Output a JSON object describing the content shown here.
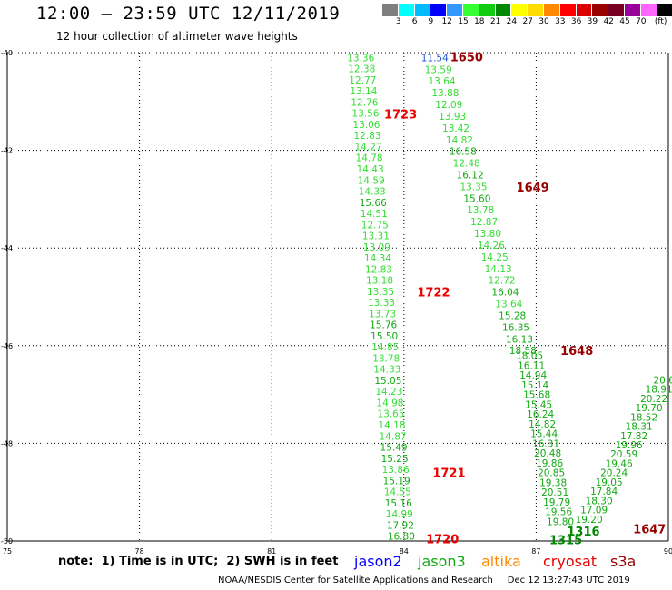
{
  "header": {
    "title": "12:00 – 23:59 UTC 12/11/2019",
    "subtitle": "12 hour collection of altimeter wave heights"
  },
  "color_scale": {
    "colors": [
      "#7f7f7f",
      "#00ffff",
      "#00bbff",
      "#0000ff",
      "#3399ff",
      "#33ff33",
      "#11cc11",
      "#008800",
      "#ffff00",
      "#ffdd00",
      "#ff8800",
      "#ff0000",
      "#dd0000",
      "#990000",
      "#770022",
      "#990099",
      "#ff66ff",
      "#000000"
    ],
    "labels": [
      "3",
      "6",
      "9",
      "12",
      "15",
      "18",
      "21",
      "24",
      "27",
      "30",
      "33",
      "36",
      "39",
      "42",
      "45",
      "70",
      "(ft)"
    ]
  },
  "map": {
    "x_ticks": [
      "75",
      "78",
      "81",
      "84",
      "87",
      "90"
    ],
    "y_ticks": [
      "-40",
      "-42",
      "-44",
      "-46",
      "-48",
      "-50"
    ]
  },
  "chart_data": {
    "type": "map",
    "x_range": [
      75,
      90
    ],
    "y_range": [
      -50,
      -40
    ],
    "tracks": [
      {
        "name": "track-1723-1720",
        "color": "#33dd33",
        "start": [
          83.02,
          -40.1
        ],
        "end": [
          83.94,
          -49.9
        ],
        "values": [
          "13.36",
          "12.38",
          "12.77",
          "13.14",
          "12.76",
          "13.56",
          "13.06",
          "12.83",
          "14.27",
          "14.78",
          "14.43",
          "14.59",
          "14.33",
          "15.66",
          "14.51",
          "12.75",
          "13.31",
          "13.09",
          "14.34",
          "12.83",
          "13.18",
          "13.35",
          "13.33",
          "13.73",
          "15.76",
          "15.50",
          "14.85",
          "13.78",
          "14.33",
          "15.05",
          "14.23",
          "14.98",
          "13.65",
          "14.18",
          "14.87",
          "15.49",
          "15.25",
          "13.86",
          "15.19",
          "14.55",
          "15.16",
          "14.99",
          "17.92",
          "16.80"
        ]
      },
      {
        "name": "track-1650-1648",
        "color": "#33dd33",
        "start": [
          84.7,
          -40.1
        ],
        "end": [
          86.7,
          -46.1
        ],
        "values": [
          "11.54",
          "13.59",
          "13.64",
          "13.88",
          "12.09",
          "13.93",
          "13.42",
          "14.82",
          "16.58",
          "12.48",
          "16.12",
          "13.35",
          "15.60",
          "13.78",
          "12.87",
          "13.80",
          "14.26",
          "14.25",
          "14.13",
          "12.72",
          "16.04",
          "13.64",
          "15.28",
          "16.35",
          "16.13",
          "18.58"
        ]
      },
      {
        "name": "track-1648-1315",
        "color": "#11aa11",
        "start": [
          86.85,
          -46.2
        ],
        "end": [
          87.55,
          -49.6
        ],
        "values": [
          "18.05",
          "16.11",
          "14.94",
          "15.14",
          "15.68",
          "15.45",
          "16.24",
          "14.82",
          "15.44",
          "16.31",
          "20.48",
          "19.86",
          "20.85",
          "19.38",
          "20.51",
          "19.79",
          "19.56",
          "19.80"
        ]
      },
      {
        "name": "track-1647-1316",
        "color": "#11aa11",
        "start": [
          89.9,
          -46.7
        ],
        "end": [
          88.2,
          -49.55
        ],
        "values": [
          "20.6",
          "18.91",
          "20.22",
          "19.70",
          "18.52",
          "18.31",
          "17.82",
          "19.96",
          "20.59",
          "19.46",
          "20.24",
          "19.05",
          "17.84",
          "18.30",
          "17.09",
          "19.20"
        ]
      }
    ],
    "time_labels": [
      {
        "text": "1650",
        "lon": 85.05,
        "lat": -40.08,
        "color": "#990000"
      },
      {
        "text": "1723",
        "lon": 83.55,
        "lat": -41.25,
        "color": "#ee0000"
      },
      {
        "text": "1649",
        "lon": 86.55,
        "lat": -42.75,
        "color": "#990000"
      },
      {
        "text": "1722",
        "lon": 84.3,
        "lat": -44.9,
        "color": "#ee0000"
      },
      {
        "text": "1648",
        "lon": 87.55,
        "lat": -46.1,
        "color": "#990000"
      },
      {
        "text": "1721",
        "lon": 84.65,
        "lat": -48.6,
        "color": "#ee0000"
      },
      {
        "text": "1647",
        "lon": 89.2,
        "lat": -49.75,
        "color": "#990000"
      },
      {
        "text": "1316",
        "lon": 87.7,
        "lat": -49.8,
        "color": "#008800"
      },
      {
        "text": "1720",
        "lon": 84.5,
        "lat": -49.95,
        "color": "#ee0000"
      },
      {
        "text": "1315",
        "lon": 87.3,
        "lat": -49.97,
        "color": "#008800"
      }
    ]
  },
  "footer": {
    "note": "note:  1) Time is in UTC;  2) SWH is in feet",
    "legend": [
      {
        "label": "jason2",
        "color": "#0000ff"
      },
      {
        "label": "jason3",
        "color": "#11aa11"
      },
      {
        "label": "altika",
        "color": "#ff8800"
      },
      {
        "label": "cryosat",
        "color": "#ee0000"
      },
      {
        "label": "s3a",
        "color": "#990000"
      }
    ],
    "credit": "NOAA/NESDIS Center for Satellite Applications and Research     Dec 12 13:27:43 UTC 2019"
  }
}
